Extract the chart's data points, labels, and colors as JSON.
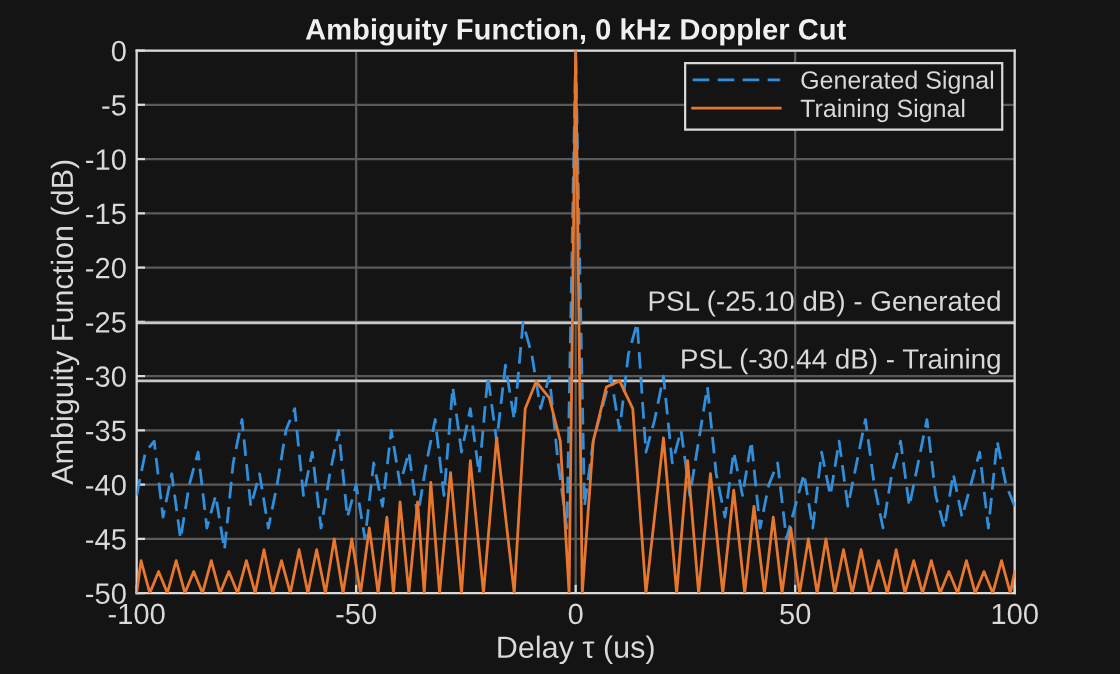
{
  "chart_data": {
    "type": "line",
    "title": "Ambiguity Function, 0 kHz Doppler Cut",
    "xlabel": "Delay τ (us)",
    "ylabel": "Ambiguity Function (dB)",
    "xlim": [
      -100,
      100
    ],
    "xticks": [
      -100,
      -50,
      0,
      50,
      100
    ],
    "ylim": [
      -50,
      0
    ],
    "yticks": [
      -50,
      -45,
      -40,
      -35,
      -30,
      -25,
      -20,
      -15,
      -10,
      -5,
      0
    ],
    "grid": true,
    "legend": "top right",
    "series": [
      {
        "name": "Generated Signal",
        "color": "#2f8fdc",
        "line_style": "dashed",
        "x": [
          -100,
          -98,
          -96,
          -94,
          -92,
          -90,
          -88,
          -86,
          -84,
          -82,
          -80,
          -78,
          -76,
          -74,
          -72,
          -70,
          -68,
          -66,
          -64,
          -62,
          -60,
          -58,
          -56,
          -54,
          -52,
          -50,
          -48,
          -46,
          -44,
          -42,
          -40,
          -38,
          -36,
          -34,
          -32,
          -30,
          -28,
          -26,
          -24,
          -22,
          -20,
          -18,
          -16,
          -14,
          -12,
          -10,
          -8,
          -6,
          -4,
          -2,
          0,
          2,
          4,
          6,
          8,
          10,
          12,
          14,
          16,
          18,
          20,
          22,
          24,
          26,
          28,
          30,
          32,
          34,
          36,
          38,
          40,
          42,
          44,
          46,
          48,
          50,
          52,
          54,
          56,
          58,
          60,
          62,
          64,
          66,
          68,
          70,
          72,
          74,
          76,
          78,
          80,
          82,
          84,
          86,
          88,
          90,
          92,
          94,
          96,
          98,
          100
        ],
        "values": [
          -41,
          -37,
          -36,
          -43,
          -39,
          -45,
          -40,
          -37,
          -44,
          -41,
          -46,
          -38,
          -34,
          -42,
          -39,
          -44,
          -40,
          -35,
          -33,
          -41,
          -37,
          -44,
          -39,
          -35,
          -43,
          -40,
          -45,
          -38,
          -42,
          -35,
          -40,
          -37,
          -43,
          -38,
          -34,
          -41,
          -31,
          -37,
          -33,
          -39,
          -30,
          -36,
          -29,
          -34,
          -25.1,
          -28,
          -33,
          -30,
          -38,
          -44,
          0,
          -42,
          -36,
          -33,
          -30,
          -35,
          -28,
          -25.1,
          -37,
          -34,
          -30,
          -38,
          -35,
          -41,
          -36,
          -31,
          -39,
          -43,
          -37,
          -41,
          -36,
          -44,
          -40,
          -38,
          -45,
          -42,
          -39,
          -44,
          -37,
          -41,
          -36,
          -42,
          -38,
          -34,
          -40,
          -44,
          -39,
          -36,
          -42,
          -38,
          -34,
          -41,
          -44,
          -39,
          -43,
          -40,
          -37,
          -44,
          -36,
          -40,
          -42
        ]
      },
      {
        "name": "Training Signal",
        "color": "#e8772e",
        "line_style": "solid",
        "x": [
          -100,
          -99,
          -97,
          -95,
          -93,
          -91,
          -89,
          -87,
          -85,
          -83,
          -81,
          -79,
          -77,
          -75,
          -73,
          -71,
          -69,
          -67,
          -65,
          -63,
          -61,
          -59,
          -57,
          -55,
          -53,
          -51,
          -49,
          -47,
          -45,
          -43,
          -41.5,
          -40,
          -38,
          -36,
          -34.5,
          -33,
          -31,
          -28.5,
          -26,
          -24,
          -21,
          -18,
          -14,
          -11.5,
          -9,
          -6,
          -3.5,
          -1.5,
          0,
          1.5,
          4,
          7,
          10,
          13,
          16,
          20,
          23,
          25.5,
          28,
          30.7,
          33.5,
          36,
          38.5,
          40.6,
          43,
          45,
          47,
          49,
          51,
          53,
          55,
          57,
          59,
          61,
          63,
          65,
          67,
          69,
          71,
          73,
          75,
          77,
          79,
          81,
          83,
          85,
          87,
          89,
          91,
          93,
          95,
          97,
          99,
          100
        ],
        "values": [
          -50,
          -47,
          -50,
          -48,
          -50,
          -47,
          -50,
          -48,
          -50,
          -47,
          -50,
          -48,
          -50,
          -47,
          -50,
          -46,
          -50,
          -47,
          -50,
          -46,
          -50,
          -46,
          -50,
          -45,
          -50,
          -45,
          -50,
          -44,
          -50,
          -43,
          -50,
          -41.6,
          -50,
          -41.6,
          -50,
          -39.8,
          -50,
          -38.9,
          -50,
          -37.8,
          -50,
          -35.7,
          -50,
          -33,
          -30.5,
          -32,
          -36,
          -50,
          0,
          -50,
          -36,
          -31,
          -30.44,
          -33,
          -50,
          -35.7,
          -50,
          -37.8,
          -50,
          -39,
          -50,
          -40.5,
          -50,
          -42,
          -50,
          -43,
          -50,
          -44,
          -50,
          -45,
          -50,
          -45,
          -50,
          -46,
          -50,
          -46,
          -50,
          -47,
          -50,
          -46,
          -50,
          -47,
          -50,
          -47,
          -50,
          -48,
          -50,
          -47,
          -50,
          -48,
          -50,
          -47,
          -50,
          -48
        ]
      }
    ],
    "ref_lines": [
      {
        "axis": "y",
        "value": -25.1,
        "label": "PSL (-25.10 dB) - Generated",
        "color": "#c8c8c8"
      },
      {
        "axis": "y",
        "value": -30.44,
        "label": "PSL (-30.44 dB) - Training",
        "color": "#c8c8c8"
      }
    ]
  }
}
